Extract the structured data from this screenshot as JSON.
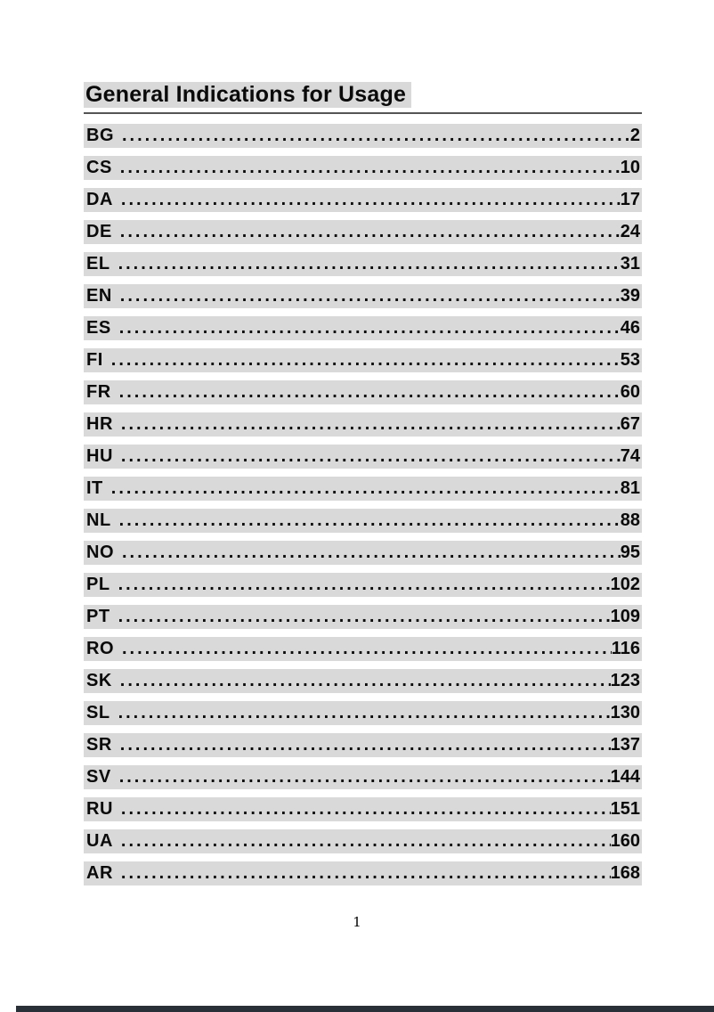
{
  "theme": {
    "stripe_gray": "#d9d9d9",
    "text_black": "#0a0a0a",
    "rule_gray": "#555555",
    "footer_bar_dark": "#2a3038"
  },
  "page": {
    "title": "General Indications for Usage",
    "footer_page_number": "1"
  },
  "toc": {
    "leader": "........................................................................................................................................................",
    "items": [
      {
        "label": "BG",
        "page": "2"
      },
      {
        "label": "CS",
        "page": "10"
      },
      {
        "label": "DA",
        "page": "17"
      },
      {
        "label": "DE",
        "page": "24"
      },
      {
        "label": "EL",
        "page": "31"
      },
      {
        "label": "EN",
        "page": "39"
      },
      {
        "label": "ES",
        "page": "46"
      },
      {
        "label": "FI",
        "page": "53"
      },
      {
        "label": "FR",
        "page": "60"
      },
      {
        "label": "HR",
        "page": "67"
      },
      {
        "label": "HU",
        "page": "74"
      },
      {
        "label": "IT",
        "page": "81"
      },
      {
        "label": "NL",
        "page": "88"
      },
      {
        "label": "NO",
        "page": "95"
      },
      {
        "label": "PL",
        "page": "102"
      },
      {
        "label": "PT",
        "page": "109"
      },
      {
        "label": "RO",
        "page": "116"
      },
      {
        "label": "SK",
        "page": "123"
      },
      {
        "label": "SL",
        "page": "130"
      },
      {
        "label": "SR",
        "page": "137"
      },
      {
        "label": "SV",
        "page": "144"
      },
      {
        "label": "RU",
        "page": "151"
      },
      {
        "label": "UA",
        "page": "160"
      },
      {
        "label": "AR",
        "page": "168"
      }
    ]
  }
}
